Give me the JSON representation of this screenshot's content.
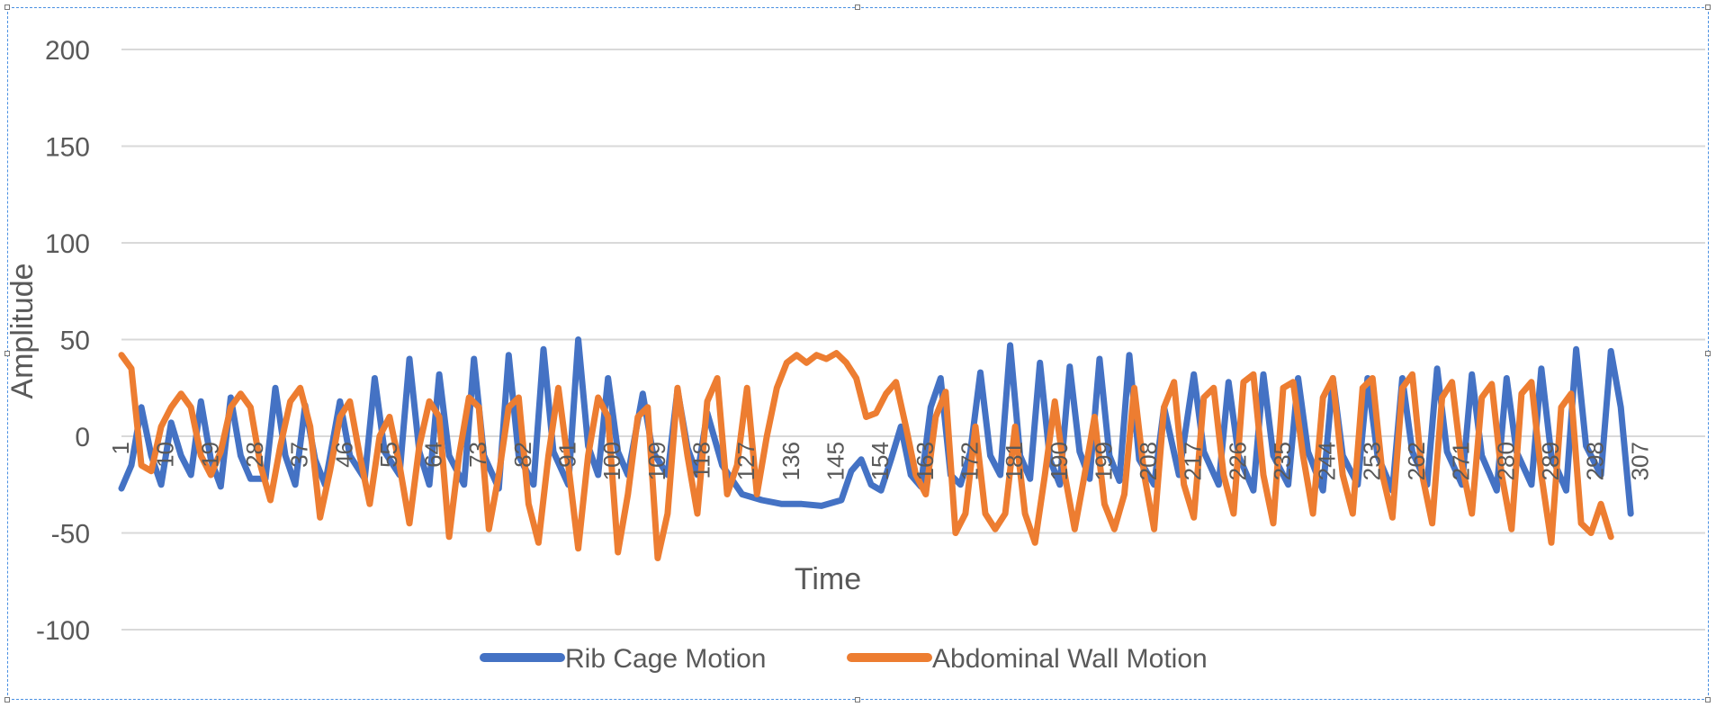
{
  "chart_data": {
    "type": "line",
    "title": "",
    "xlabel": "Time",
    "ylabel": "Amplitude",
    "ylim": [
      -100,
      200
    ],
    "yticks": [
      -100,
      -50,
      0,
      50,
      100,
      150,
      200
    ],
    "grid": true,
    "legend_position": "bottom",
    "x_tick_labels": [
      "1",
      "10",
      "19",
      "28",
      "37",
      "46",
      "55",
      "64",
      "73",
      "82",
      "91",
      "100",
      "109",
      "118",
      "127",
      "136",
      "145",
      "154",
      "163",
      "172",
      "181",
      "190",
      "199",
      "208",
      "217",
      "226",
      "235",
      "244",
      "253",
      "262",
      "271",
      "280",
      "289",
      "298",
      "307"
    ],
    "x_range": [
      1,
      320
    ],
    "series": [
      {
        "name": "Rib Cage Motion",
        "color": "#4472C4",
        "points": [
          [
            1,
            -27
          ],
          [
            3,
            -15
          ],
          [
            5,
            15
          ],
          [
            7,
            -10
          ],
          [
            9,
            -25
          ],
          [
            11,
            7
          ],
          [
            13,
            -10
          ],
          [
            15,
            -20
          ],
          [
            17,
            18
          ],
          [
            19,
            -12
          ],
          [
            21,
            -26
          ],
          [
            23,
            20
          ],
          [
            25,
            -10
          ],
          [
            27,
            -22
          ],
          [
            30,
            -22
          ],
          [
            32,
            25
          ],
          [
            34,
            -10
          ],
          [
            36,
            -25
          ],
          [
            38,
            16
          ],
          [
            40,
            -12
          ],
          [
            42,
            -25
          ],
          [
            45,
            18
          ],
          [
            47,
            -10
          ],
          [
            50,
            -22
          ],
          [
            52,
            30
          ],
          [
            54,
            -8
          ],
          [
            57,
            -20
          ],
          [
            59,
            40
          ],
          [
            61,
            -8
          ],
          [
            63,
            -25
          ],
          [
            65,
            32
          ],
          [
            67,
            -10
          ],
          [
            70,
            -25
          ],
          [
            72,
            40
          ],
          [
            74,
            -10
          ],
          [
            77,
            -27
          ],
          [
            79,
            42
          ],
          [
            81,
            -10
          ],
          [
            84,
            -25
          ],
          [
            86,
            45
          ],
          [
            88,
            -8
          ],
          [
            91,
            -25
          ],
          [
            93,
            50
          ],
          [
            95,
            -5
          ],
          [
            97,
            -20
          ],
          [
            99,
            30
          ],
          [
            101,
            -8
          ],
          [
            103,
            -20
          ],
          [
            106,
            22
          ],
          [
            108,
            -8
          ],
          [
            111,
            -20
          ],
          [
            113,
            24
          ],
          [
            115,
            -6
          ],
          [
            117,
            -20
          ],
          [
            119,
            12
          ],
          [
            122,
            -15
          ],
          [
            126,
            -30
          ],
          [
            130,
            -33
          ],
          [
            134,
            -35
          ],
          [
            138,
            -35
          ],
          [
            142,
            -36
          ],
          [
            146,
            -33
          ],
          [
            148,
            -18
          ],
          [
            150,
            -12
          ],
          [
            152,
            -25
          ],
          [
            154,
            -28
          ],
          [
            156,
            -12
          ],
          [
            158,
            5
          ],
          [
            160,
            -20
          ],
          [
            162,
            -26
          ],
          [
            164,
            15
          ],
          [
            166,
            30
          ],
          [
            168,
            -20
          ],
          [
            170,
            -25
          ],
          [
            172,
            -8
          ],
          [
            174,
            33
          ],
          [
            176,
            -10
          ],
          [
            178,
            -20
          ],
          [
            180,
            47
          ],
          [
            182,
            -10
          ],
          [
            184,
            -22
          ],
          [
            186,
            38
          ],
          [
            188,
            -12
          ],
          [
            190,
            -25
          ],
          [
            192,
            36
          ],
          [
            194,
            -8
          ],
          [
            196,
            -22
          ],
          [
            198,
            40
          ],
          [
            200,
            -10
          ],
          [
            202,
            -23
          ],
          [
            204,
            42
          ],
          [
            206,
            -12
          ],
          [
            209,
            -25
          ],
          [
            211,
            15
          ],
          [
            214,
            -20
          ],
          [
            217,
            32
          ],
          [
            219,
            -8
          ],
          [
            222,
            -25
          ],
          [
            224,
            28
          ],
          [
            226,
            -10
          ],
          [
            229,
            -28
          ],
          [
            231,
            32
          ],
          [
            233,
            -10
          ],
          [
            236,
            -25
          ],
          [
            238,
            30
          ],
          [
            240,
            -8
          ],
          [
            243,
            -28
          ],
          [
            245,
            30
          ],
          [
            247,
            -10
          ],
          [
            250,
            -25
          ],
          [
            252,
            30
          ],
          [
            254,
            -10
          ],
          [
            257,
            -28
          ],
          [
            259,
            30
          ],
          [
            261,
            -8
          ],
          [
            264,
            -25
          ],
          [
            266,
            35
          ],
          [
            268,
            -8
          ],
          [
            271,
            -25
          ],
          [
            273,
            32
          ],
          [
            275,
            -10
          ],
          [
            278,
            -28
          ],
          [
            280,
            30
          ],
          [
            282,
            -8
          ],
          [
            285,
            -25
          ],
          [
            287,
            35
          ],
          [
            289,
            -10
          ],
          [
            292,
            -28
          ],
          [
            294,
            45
          ],
          [
            296,
            -5
          ],
          [
            299,
            -20
          ],
          [
            301,
            44
          ],
          [
            303,
            15
          ],
          [
            305,
            -40
          ]
        ]
      },
      {
        "name": "Abdominal Wall Motion",
        "color": "#ED7D31",
        "points": [
          [
            1,
            42
          ],
          [
            3,
            35
          ],
          [
            5,
            -15
          ],
          [
            7,
            -18
          ],
          [
            9,
            5
          ],
          [
            11,
            15
          ],
          [
            13,
            22
          ],
          [
            15,
            15
          ],
          [
            17,
            -10
          ],
          [
            19,
            -20
          ],
          [
            21,
            -8
          ],
          [
            23,
            15
          ],
          [
            25,
            22
          ],
          [
            27,
            15
          ],
          [
            29,
            -15
          ],
          [
            31,
            -33
          ],
          [
            33,
            -5
          ],
          [
            35,
            18
          ],
          [
            37,
            25
          ],
          [
            39,
            5
          ],
          [
            41,
            -42
          ],
          [
            43,
            -18
          ],
          [
            45,
            10
          ],
          [
            47,
            18
          ],
          [
            49,
            -10
          ],
          [
            51,
            -35
          ],
          [
            53,
            0
          ],
          [
            55,
            10
          ],
          [
            57,
            -15
          ],
          [
            59,
            -45
          ],
          [
            61,
            -5
          ],
          [
            63,
            18
          ],
          [
            65,
            10
          ],
          [
            67,
            -52
          ],
          [
            69,
            -10
          ],
          [
            71,
            20
          ],
          [
            73,
            15
          ],
          [
            75,
            -48
          ],
          [
            77,
            -20
          ],
          [
            79,
            15
          ],
          [
            81,
            20
          ],
          [
            83,
            -35
          ],
          [
            85,
            -55
          ],
          [
            87,
            -10
          ],
          [
            89,
            25
          ],
          [
            91,
            -15
          ],
          [
            93,
            -58
          ],
          [
            95,
            -10
          ],
          [
            97,
            20
          ],
          [
            99,
            10
          ],
          [
            101,
            -60
          ],
          [
            103,
            -30
          ],
          [
            105,
            10
          ],
          [
            107,
            15
          ],
          [
            109,
            -63
          ],
          [
            111,
            -40
          ],
          [
            113,
            25
          ],
          [
            115,
            -10
          ],
          [
            117,
            -40
          ],
          [
            119,
            18
          ],
          [
            121,
            30
          ],
          [
            123,
            -30
          ],
          [
            125,
            -15
          ],
          [
            127,
            25
          ],
          [
            129,
            -30
          ],
          [
            131,
            0
          ],
          [
            133,
            25
          ],
          [
            135,
            38
          ],
          [
            137,
            42
          ],
          [
            139,
            38
          ],
          [
            141,
            42
          ],
          [
            143,
            40
          ],
          [
            145,
            43
          ],
          [
            147,
            38
          ],
          [
            149,
            30
          ],
          [
            151,
            10
          ],
          [
            153,
            12
          ],
          [
            155,
            22
          ],
          [
            157,
            28
          ],
          [
            159,
            5
          ],
          [
            161,
            -20
          ],
          [
            163,
            -30
          ],
          [
            165,
            10
          ],
          [
            167,
            23
          ],
          [
            169,
            -50
          ],
          [
            171,
            -40
          ],
          [
            173,
            5
          ],
          [
            175,
            -40
          ],
          [
            177,
            -48
          ],
          [
            179,
            -40
          ],
          [
            181,
            5
          ],
          [
            183,
            -40
          ],
          [
            185,
            -55
          ],
          [
            187,
            -20
          ],
          [
            189,
            18
          ],
          [
            191,
            -20
          ],
          [
            193,
            -48
          ],
          [
            195,
            -20
          ],
          [
            197,
            10
          ],
          [
            199,
            -35
          ],
          [
            201,
            -48
          ],
          [
            203,
            -30
          ],
          [
            205,
            25
          ],
          [
            207,
            -20
          ],
          [
            209,
            -48
          ],
          [
            211,
            15
          ],
          [
            213,
            28
          ],
          [
            215,
            -25
          ],
          [
            217,
            -42
          ],
          [
            219,
            20
          ],
          [
            221,
            25
          ],
          [
            223,
            -20
          ],
          [
            225,
            -40
          ],
          [
            227,
            28
          ],
          [
            229,
            32
          ],
          [
            231,
            -20
          ],
          [
            233,
            -45
          ],
          [
            235,
            25
          ],
          [
            237,
            28
          ],
          [
            239,
            -10
          ],
          [
            241,
            -40
          ],
          [
            243,
            20
          ],
          [
            245,
            30
          ],
          [
            247,
            -20
          ],
          [
            249,
            -40
          ],
          [
            251,
            25
          ],
          [
            253,
            30
          ],
          [
            255,
            -20
          ],
          [
            257,
            -42
          ],
          [
            259,
            25
          ],
          [
            261,
            32
          ],
          [
            263,
            -20
          ],
          [
            265,
            -45
          ],
          [
            267,
            20
          ],
          [
            269,
            28
          ],
          [
            271,
            -15
          ],
          [
            273,
            -40
          ],
          [
            275,
            20
          ],
          [
            277,
            27
          ],
          [
            279,
            -20
          ],
          [
            281,
            -48
          ],
          [
            283,
            22
          ],
          [
            285,
            28
          ],
          [
            287,
            -20
          ],
          [
            289,
            -55
          ],
          [
            291,
            15
          ],
          [
            293,
            22
          ],
          [
            295,
            -45
          ],
          [
            297,
            -50
          ],
          [
            299,
            -35
          ],
          [
            301,
            -52
          ]
        ]
      }
    ]
  }
}
